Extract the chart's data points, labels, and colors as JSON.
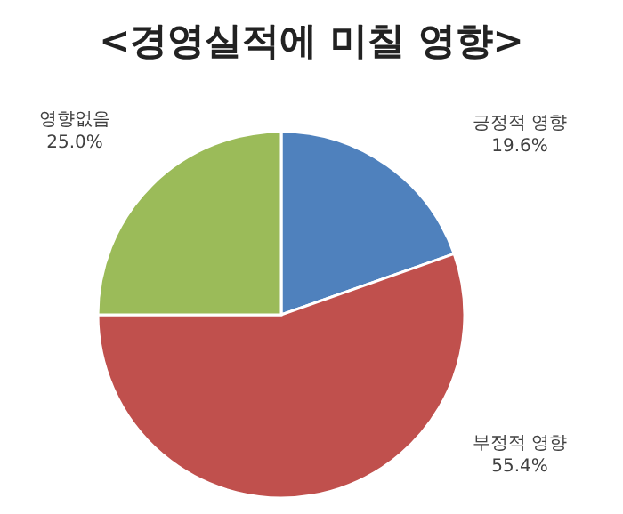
{
  "chart_data": {
    "type": "pie",
    "title": "<경영실적에 미칠 영향>",
    "categories": [
      "긍정적 영향",
      "부정적 영향",
      "영향없음"
    ],
    "values": [
      19.6,
      55.4,
      25.0
    ],
    "colors": [
      "#4f81bd",
      "#c0504d",
      "#9bbb59"
    ],
    "value_labels": [
      "19.6%",
      "55.4%",
      "25.0%"
    ]
  }
}
